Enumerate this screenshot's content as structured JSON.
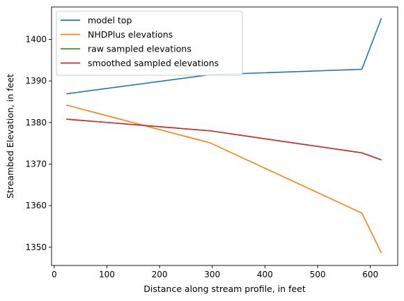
{
  "chart_data": {
    "type": "line",
    "title": "",
    "xlabel": "Distance along stream profile, in feet",
    "ylabel": "Streambed Elevation, in feet",
    "xlim": [
      -5,
      652
    ],
    "ylim": [
      1345.6,
      1407.8
    ],
    "xticks": [
      0,
      100,
      200,
      300,
      400,
      500,
      600
    ],
    "yticks": [
      1350,
      1360,
      1370,
      1380,
      1390,
      1400
    ],
    "grid": false,
    "legend_position": "top-left",
    "series": [
      {
        "name": "model top",
        "color": "#1f77b4",
        "x": [
          23,
          296,
          584,
          621
        ],
        "y": [
          1386.9,
          1391.5,
          1392.8,
          1405.1
        ]
      },
      {
        "name": "NHDPlus elevations",
        "color": "#ff7f0e",
        "x": [
          23,
          296,
          584,
          621
        ],
        "y": [
          1384.2,
          1375.1,
          1358.2,
          1348.6
        ]
      },
      {
        "name": "raw sampled elevations",
        "color": "#2ca02c",
        "x": [
          23,
          296,
          584,
          621
        ],
        "y": [
          1380.8,
          1378.0,
          1372.7,
          1371.0
        ]
      },
      {
        "name": "smoothed sampled elevations",
        "color": "#d62728",
        "x": [
          23,
          296,
          584,
          621
        ],
        "y": [
          1380.8,
          1378.0,
          1372.7,
          1371.0
        ]
      }
    ]
  }
}
